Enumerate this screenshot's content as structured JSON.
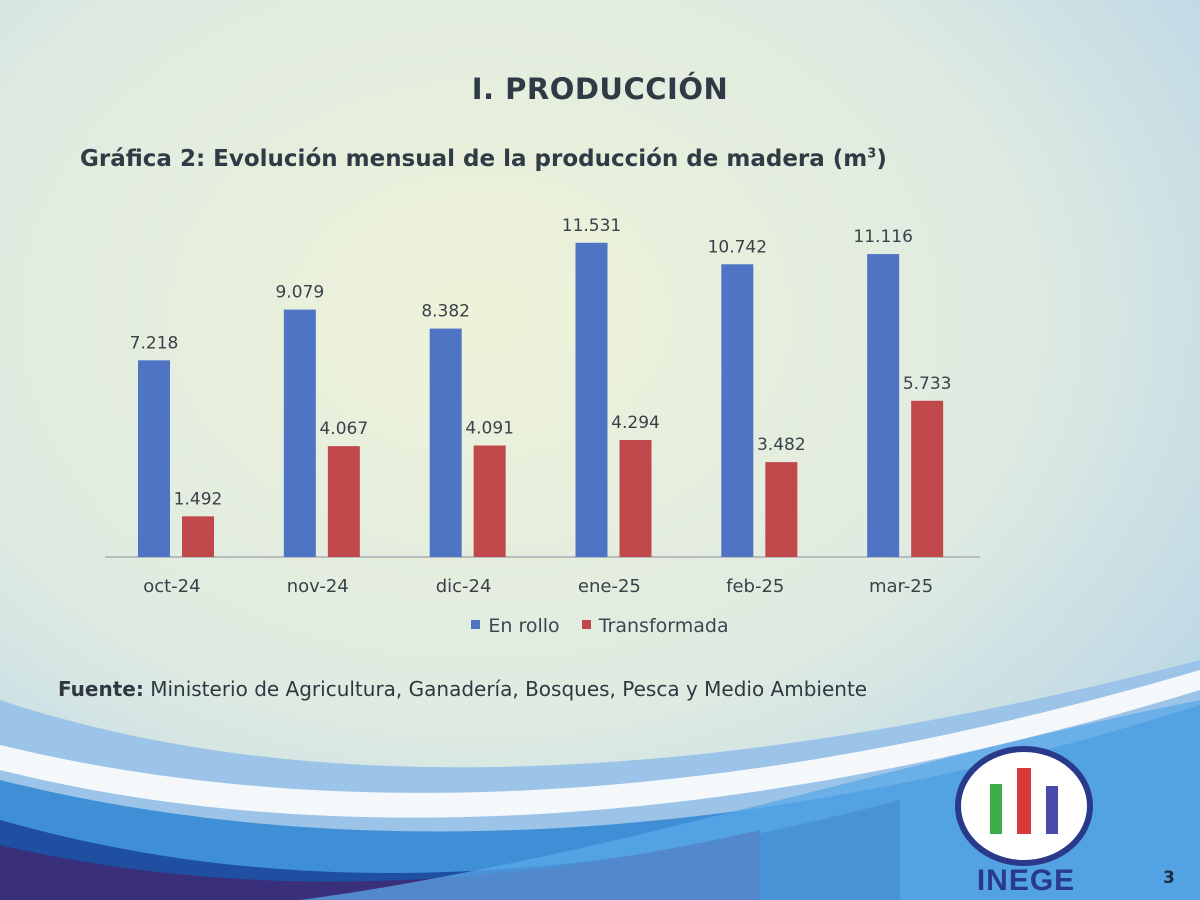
{
  "slide": {
    "section_title": "I. PRODUCCIÓN",
    "chart_title": "Gráfica 2: Evolución mensual de la producción de madera (m",
    "chart_title_sup": "3",
    "chart_title_suffix": ")",
    "source_label": "Fuente:",
    "source_text": "Ministerio de Agricultura, Ganadería, Bosques, Pesca y Medio Ambiente",
    "logo_text": "INEGE",
    "page_number": "3"
  },
  "colors": {
    "en_rollo": "#4f74c4",
    "transformada": "#c0474a",
    "logo_ring": "#2a3a8a",
    "logo_bars": [
      "#3fae49",
      "#d73a3a",
      "#4a4aa8"
    ]
  },
  "chart_data": {
    "type": "bar",
    "categories": [
      "oct-24",
      "nov-24",
      "dic-24",
      "ene-25",
      "feb-25",
      "mar-25"
    ],
    "series": [
      {
        "name": "En rollo",
        "values": [
          7218,
          9079,
          8382,
          11531,
          10742,
          11116
        ],
        "labels": [
          "7.218",
          "9.079",
          "8.382",
          "11.531",
          "10.742",
          "11.116"
        ]
      },
      {
        "name": "Transformada",
        "values": [
          1492,
          4067,
          4091,
          4294,
          3482,
          5733
        ],
        "labels": [
          "1.492",
          "4.067",
          "4.091",
          "4.294",
          "3.482",
          "5.733"
        ]
      }
    ],
    "ylim": [
      0,
      12000
    ],
    "grid": false,
    "legend": "bottom"
  }
}
